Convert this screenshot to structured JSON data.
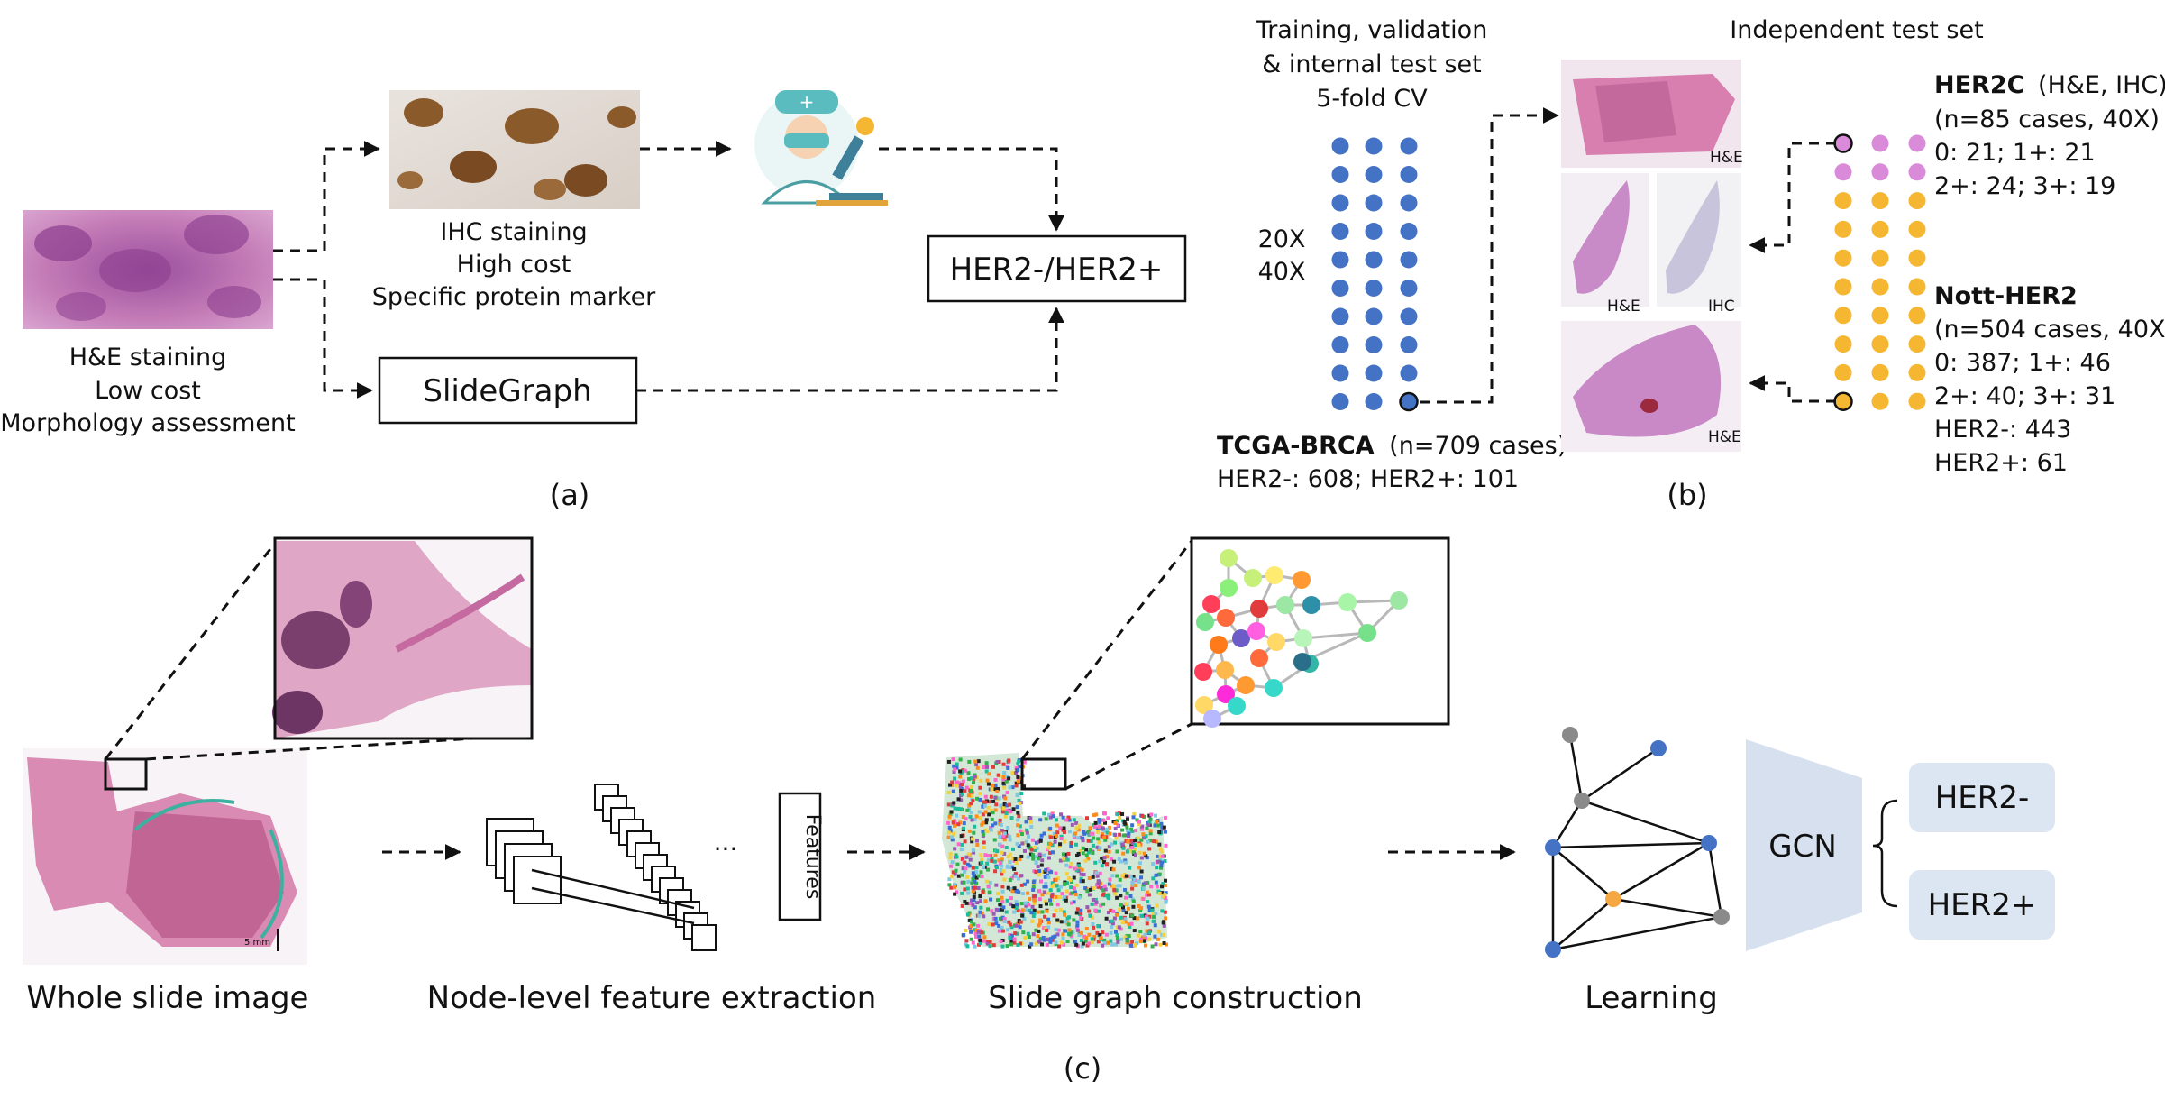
{
  "panel_a": {
    "he_caption": [
      "H&E staining",
      "Low cost",
      "Morphology assessment"
    ],
    "ihc_caption": [
      "IHC staining",
      "High cost",
      "Specific protein marker"
    ],
    "slidegraph": "SlideGraph",
    "outcome": "HER2-/HER2+",
    "label": "(a)"
  },
  "panel_b": {
    "train_title": [
      "Training, validation",
      "& internal test set",
      "5-fold CV"
    ],
    "magnifications": [
      "20X",
      "40X"
    ],
    "tcga_name": "TCGA-BRCA",
    "tcga_detail": "(n=709 cases)",
    "tcga_counts": "HER2-: 608; HER2+: 101",
    "test_title": "Independent test set",
    "thumb_labels": [
      "H&E",
      "H&E",
      "IHC",
      "H&E"
    ],
    "her2c_name": "HER2C",
    "her2c_suffix": "(H&E, IHC)",
    "her2c_lines": [
      "(n=85 cases, 40X)",
      "0: 21;   1+: 21",
      "2+: 24;  3+: 19"
    ],
    "nott_name": "Nott-HER2",
    "nott_lines": [
      "(n=504 cases, 40X)",
      "0: 387;   1+: 46",
      "2+: 40;   3+: 31",
      "HER2-: 443",
      "HER2+: 61"
    ],
    "label": "(b)"
  },
  "panel_c": {
    "wsi_caption": "Whole slide image",
    "scale_bar": "5 mm",
    "feature_caption": "Node-level feature extraction",
    "features_box": "Features",
    "ellipsis": "...",
    "graph_caption": "Slide graph construction",
    "learning_caption": "Learning",
    "gcn": "GCN",
    "out_neg": "HER2-",
    "out_pos": "HER2+",
    "label": "(c)"
  },
  "colors": {
    "dot_blue": "#4472c4",
    "dot_pink": "#d98ad9",
    "dot_orange": "#f5b731",
    "gcn_fill": "#d6e0ef",
    "out_fill": "#dce6f2",
    "he_pink": "#c77bb0",
    "ihc_brown": "#8a5a2b"
  }
}
